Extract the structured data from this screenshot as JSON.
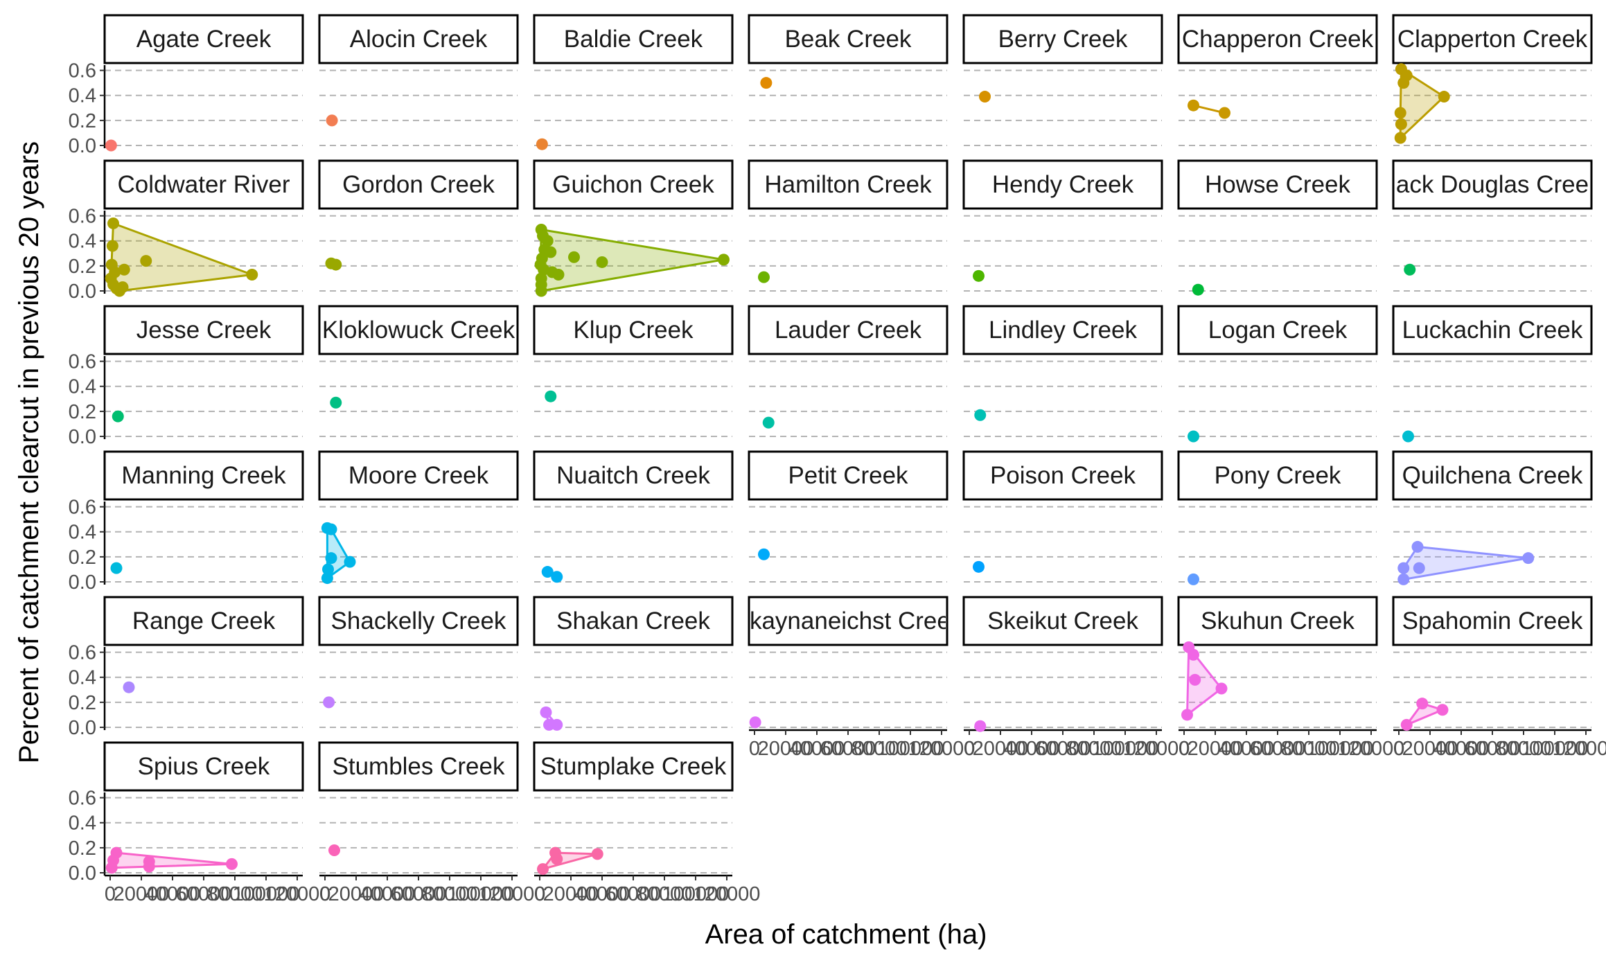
{
  "chart_data": {
    "type": "scatter",
    "xlabel": "Area of catchment (ha)",
    "ylabel": "Percent of catchment clearcut in previous 20 years",
    "xlim": [
      0,
      120000
    ],
    "ylim": [
      0,
      0.62
    ],
    "x_ticks": [
      0,
      20000,
      40000,
      60000,
      80000,
      100000,
      120000
    ],
    "y_ticks": [
      0.0,
      0.2,
      0.4,
      0.6
    ],
    "y_tick_labels": [
      "0.0",
      "0.2",
      "0.4",
      "0.6"
    ],
    "grid": "horizontal-dashed",
    "hull": true,
    "legend": "none",
    "facets": [
      {
        "name": "Agate Creek",
        "color": "#F8766D",
        "points": [
          [
            600,
            0.0
          ]
        ]
      },
      {
        "name": "Alocin Creek",
        "color": "#F27D52",
        "points": [
          [
            4500,
            0.2
          ]
        ]
      },
      {
        "name": "Baldie Creek",
        "color": "#EA8331",
        "points": [
          [
            1500,
            0.01
          ]
        ]
      },
      {
        "name": "Beak Creek",
        "color": "#E18A00",
        "points": [
          [
            7500,
            0.5
          ]
        ]
      },
      {
        "name": "Berry Creek",
        "color": "#D69100",
        "points": [
          [
            10000,
            0.39
          ]
        ]
      },
      {
        "name": "Chapperon Creek",
        "color": "#C99800",
        "points": [
          [
            6000,
            0.32
          ],
          [
            26000,
            0.26
          ]
        ]
      },
      {
        "name": "Clapperton Creek",
        "color": "#BB9D00",
        "points": [
          [
            1500,
            0.61
          ],
          [
            3000,
            0.5
          ],
          [
            5000,
            0.56
          ],
          [
            1000,
            0.26
          ],
          [
            1500,
            0.17
          ],
          [
            1000,
            0.06
          ],
          [
            29000,
            0.39
          ]
        ]
      },
      {
        "name": "Coldwater River",
        "color": "#ABA300",
        "points": [
          [
            2000,
            0.54
          ],
          [
            1500,
            0.36
          ],
          [
            1000,
            0.21
          ],
          [
            3000,
            0.15
          ],
          [
            500,
            0.1
          ],
          [
            2000,
            0.05
          ],
          [
            4000,
            0.02
          ],
          [
            6000,
            0.0
          ],
          [
            8000,
            0.03
          ],
          [
            9000,
            0.17
          ],
          [
            23000,
            0.24
          ],
          [
            91000,
            0.13
          ]
        ]
      },
      {
        "name": "Gordon Creek",
        "color": "#99A800",
        "points": [
          [
            4000,
            0.22
          ],
          [
            7000,
            0.21
          ]
        ]
      },
      {
        "name": "Guichon Creek",
        "color": "#85AD00",
        "points": [
          [
            1000,
            0.49
          ],
          [
            2000,
            0.44
          ],
          [
            5000,
            0.4
          ],
          [
            3000,
            0.33
          ],
          [
            7000,
            0.31
          ],
          [
            1500,
            0.26
          ],
          [
            500,
            0.21
          ],
          [
            2500,
            0.17
          ],
          [
            1000,
            0.1
          ],
          [
            1000,
            0.05
          ],
          [
            1000,
            0.0
          ],
          [
            8000,
            0.15
          ],
          [
            12000,
            0.13
          ],
          [
            22000,
            0.27
          ],
          [
            40000,
            0.23
          ],
          [
            118000,
            0.25
          ]
        ]
      },
      {
        "name": "Hamilton Creek",
        "color": "#6DB200",
        "points": [
          [
            6000,
            0.11
          ]
        ]
      },
      {
        "name": "Hendy Creek",
        "color": "#4EB600",
        "points": [
          [
            6000,
            0.12
          ]
        ]
      },
      {
        "name": "Howse Creek",
        "color": "#00BA38",
        "points": [
          [
            9000,
            0.01
          ]
        ]
      },
      {
        "name": "Jack Douglas Creek",
        "color": "#00BC5A",
        "points": [
          [
            7000,
            0.17
          ]
        ]
      },
      {
        "name": "Jesse Creek",
        "color": "#00BE70",
        "points": [
          [
            5000,
            0.16
          ]
        ]
      },
      {
        "name": "Kloklowuck Creek",
        "color": "#00BF83",
        "points": [
          [
            7000,
            0.27
          ]
        ]
      },
      {
        "name": "Klup Creek",
        "color": "#00C094",
        "points": [
          [
            7000,
            0.32
          ]
        ]
      },
      {
        "name": "Lauder Creek",
        "color": "#00C0A4",
        "points": [
          [
            9000,
            0.11
          ]
        ]
      },
      {
        "name": "Lindley Creek",
        "color": "#00C0B4",
        "points": [
          [
            7000,
            0.17
          ]
        ]
      },
      {
        "name": "Logan Creek",
        "color": "#00BFC3",
        "points": [
          [
            6000,
            0.0
          ]
        ]
      },
      {
        "name": "Luckachin Creek",
        "color": "#00BDD0",
        "points": [
          [
            6000,
            0.0
          ]
        ]
      },
      {
        "name": "Manning Creek",
        "color": "#00BADD",
        "points": [
          [
            4000,
            0.11
          ]
        ]
      },
      {
        "name": "Moore Creek",
        "color": "#00B6E8",
        "points": [
          [
            1500,
            0.43
          ],
          [
            4000,
            0.42
          ],
          [
            2000,
            0.1
          ],
          [
            1500,
            0.03
          ],
          [
            4000,
            0.19
          ],
          [
            16000,
            0.16
          ]
        ]
      },
      {
        "name": "Nuaitch Creek",
        "color": "#00B0F2",
        "points": [
          [
            5000,
            0.08
          ],
          [
            11000,
            0.04
          ]
        ]
      },
      {
        "name": "Petit Creek",
        "color": "#00AAFA",
        "points": [
          [
            6000,
            0.22
          ]
        ]
      },
      {
        "name": "Poison Creek",
        "color": "#00A2FF",
        "points": [
          [
            6000,
            0.12
          ]
        ]
      },
      {
        "name": "Pony Creek",
        "color": "#619CFF",
        "points": [
          [
            6000,
            0.02
          ]
        ]
      },
      {
        "name": "Quilchena Creek",
        "color": "#8F92FF",
        "points": [
          [
            3000,
            0.11
          ],
          [
            3000,
            0.02
          ],
          [
            12000,
            0.28
          ],
          [
            13000,
            0.11
          ],
          [
            83000,
            0.19
          ]
        ]
      },
      {
        "name": "Range Creek",
        "color": "#AC88FF",
        "points": [
          [
            12000,
            0.32
          ]
        ]
      },
      {
        "name": "Shackelly Creek",
        "color": "#C17FFF",
        "points": [
          [
            2500,
            0.2
          ]
        ]
      },
      {
        "name": "Shakan Creek",
        "color": "#D277FF",
        "points": [
          [
            4000,
            0.12
          ],
          [
            6000,
            0.02
          ],
          [
            11000,
            0.02
          ]
        ]
      },
      {
        "name": "Skaynaneichst Creek",
        "color": "#DF70F9",
        "points": [
          [
            500,
            0.04
          ]
        ]
      },
      {
        "name": "Skeikut Creek",
        "color": "#E96BF0",
        "points": [
          [
            7000,
            0.01
          ]
        ]
      },
      {
        "name": "Skuhun Creek",
        "color": "#F066E5",
        "points": [
          [
            3000,
            0.64
          ],
          [
            6000,
            0.58
          ],
          [
            7000,
            0.38
          ],
          [
            2000,
            0.1
          ],
          [
            24000,
            0.31
          ]
        ]
      },
      {
        "name": "Spahomin Creek",
        "color": "#F564D8",
        "points": [
          [
            5000,
            0.02
          ],
          [
            15000,
            0.19
          ],
          [
            28000,
            0.14
          ]
        ]
      },
      {
        "name": "Spius Creek",
        "color": "#F863C9",
        "points": [
          [
            4000,
            0.16
          ],
          [
            2000,
            0.1
          ],
          [
            1000,
            0.04
          ],
          [
            25000,
            0.09
          ],
          [
            25000,
            0.05
          ],
          [
            78000,
            0.07
          ]
        ]
      },
      {
        "name": "Stumbles Creek",
        "color": "#FA64B8",
        "points": [
          [
            6000,
            0.18
          ]
        ]
      },
      {
        "name": "Stumplake Creek",
        "color": "#F967A5",
        "points": [
          [
            2000,
            0.03
          ],
          [
            10000,
            0.16
          ],
          [
            11000,
            0.11
          ],
          [
            37000,
            0.15
          ]
        ]
      }
    ]
  }
}
